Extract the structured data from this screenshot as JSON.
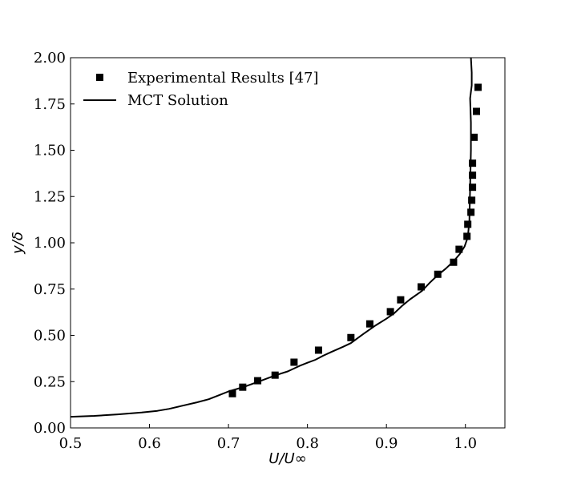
{
  "chart_data": {
    "type": "scatter",
    "title": "",
    "xlabel": "U/U∞",
    "ylabel": "y/δ",
    "xlim": [
      0.5,
      1.05
    ],
    "ylim": [
      0.0,
      2.0
    ],
    "xticks": [
      0.5,
      0.6,
      0.7,
      0.8,
      0.9,
      1.0
    ],
    "xtick_labels": [
      "0.5",
      "0.6",
      "0.7",
      "0.8",
      "0.9",
      "1.0"
    ],
    "yticks": [
      0.0,
      0.25,
      0.5,
      0.75,
      1.0,
      1.25,
      1.5,
      1.75,
      2.0
    ],
    "ytick_labels": [
      "0.00",
      "0.25",
      "0.50",
      "0.75",
      "1.00",
      "1.25",
      "1.50",
      "1.75",
      "2.00"
    ],
    "grid": false,
    "legend_position": "top-left",
    "series": [
      {
        "name": "Experimental Results [47]",
        "kind": "markers",
        "marker": "square",
        "color": "#000000",
        "points": [
          [
            0.705,
            0.185
          ],
          [
            0.718,
            0.22
          ],
          [
            0.737,
            0.255
          ],
          [
            0.759,
            0.285
          ],
          [
            0.783,
            0.355
          ],
          [
            0.814,
            0.42
          ],
          [
            0.855,
            0.488
          ],
          [
            0.879,
            0.562
          ],
          [
            0.905,
            0.628
          ],
          [
            0.918,
            0.692
          ],
          [
            0.944,
            0.762
          ],
          [
            0.965,
            0.83
          ],
          [
            0.985,
            0.895
          ],
          [
            0.992,
            0.965
          ],
          [
            1.002,
            1.035
          ],
          [
            1.003,
            1.1
          ],
          [
            1.007,
            1.165
          ],
          [
            1.008,
            1.23
          ],
          [
            1.009,
            1.3
          ],
          [
            1.009,
            1.365
          ],
          [
            1.009,
            1.43
          ],
          [
            1.011,
            1.57
          ],
          [
            1.014,
            1.71
          ],
          [
            1.016,
            1.84
          ]
        ]
      },
      {
        "name": "MCT Solution",
        "kind": "line",
        "color": "#000000",
        "points": [
          [
            0.5,
            0.06
          ],
          [
            0.53,
            0.065
          ],
          [
            0.56,
            0.073
          ],
          [
            0.59,
            0.083
          ],
          [
            0.61,
            0.092
          ],
          [
            0.625,
            0.103
          ],
          [
            0.64,
            0.118
          ],
          [
            0.66,
            0.138
          ],
          [
            0.675,
            0.155
          ],
          [
            0.69,
            0.18
          ],
          [
            0.7,
            0.197
          ],
          [
            0.72,
            0.222
          ],
          [
            0.74,
            0.253
          ],
          [
            0.76,
            0.285
          ],
          [
            0.775,
            0.305
          ],
          [
            0.79,
            0.335
          ],
          [
            0.8,
            0.352
          ],
          [
            0.81,
            0.368
          ],
          [
            0.82,
            0.39
          ],
          [
            0.83,
            0.41
          ],
          [
            0.845,
            0.438
          ],
          [
            0.855,
            0.458
          ],
          [
            0.87,
            0.505
          ],
          [
            0.885,
            0.55
          ],
          [
            0.9,
            0.59
          ],
          [
            0.91,
            0.62
          ],
          [
            0.92,
            0.66
          ],
          [
            0.93,
            0.695
          ],
          [
            0.945,
            0.74
          ],
          [
            0.955,
            0.785
          ],
          [
            0.965,
            0.825
          ],
          [
            0.975,
            0.86
          ],
          [
            0.985,
            0.9
          ],
          [
            0.993,
            0.94
          ],
          [
            0.999,
            0.98
          ],
          [
            1.003,
            1.03
          ],
          [
            1.005,
            1.12
          ],
          [
            1.006,
            1.3
          ],
          [
            1.007,
            1.5
          ],
          [
            1.007,
            1.65
          ],
          [
            1.006,
            1.78
          ],
          [
            1.008,
            1.85
          ],
          [
            1.008,
            1.92
          ],
          [
            1.007,
            2.0
          ]
        ]
      }
    ]
  }
}
